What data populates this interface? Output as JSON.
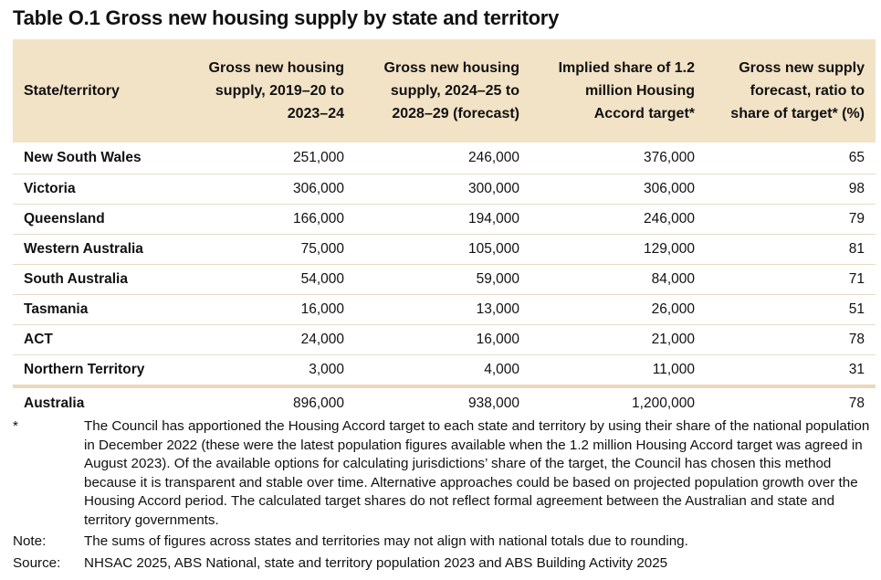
{
  "title": "Table O.1 Gross new housing supply by state and territory",
  "columns": [
    "State/territory",
    "Gross new housing supply, 2019–20 to 2023–24",
    "Gross new housing supply, 2024–25 to 2028–29 (forecast)",
    "Implied share of 1.2 million Housing Accord target*",
    "Gross new supply forecast, ratio to share of target* (%)"
  ],
  "rows": [
    [
      "New South Wales",
      "251,000",
      "246,000",
      "376,000",
      "65"
    ],
    [
      "Victoria",
      "306,000",
      "300,000",
      "306,000",
      "98"
    ],
    [
      "Queensland",
      "166,000",
      "194,000",
      "246,000",
      "79"
    ],
    [
      "Western Australia",
      "75,000",
      "105,000",
      "129,000",
      "81"
    ],
    [
      "South Australia",
      "54,000",
      "59,000",
      "84,000",
      "71"
    ],
    [
      "Tasmania",
      "16,000",
      "13,000",
      "26,000",
      "51"
    ],
    [
      "ACT",
      "24,000",
      "16,000",
      "21,000",
      "78"
    ],
    [
      "Northern Territory",
      "3,000",
      "4,000",
      "11,000",
      "31"
    ]
  ],
  "total": [
    "Australia",
    "896,000",
    "938,000",
    "1,200,000",
    "78"
  ],
  "notes": [
    {
      "key": "*",
      "text": "The Council has apportioned the Housing Accord target to each state and territory by using their share of the national population in December 2022 (these were the latest population figures available when the 1.2 million Housing Accord target was agreed in August 2023). Of the available options for calculating jurisdictions’ share of the target, the Council has chosen this method because it is transparent and stable over time. Alternative approaches could be based on projected population growth over the Housing Accord period. The calculated target shares do not reflect formal agreement between the Australian and state and territory governments."
    },
    {
      "key": "Note:",
      "text": "The sums of figures across states and territories may not align with national totals due to rounding."
    },
    {
      "key": "Source:",
      "text": "NHSAC 2025, ABS National, state and territory population 2023 and ABS Building Activity 2025"
    }
  ]
}
